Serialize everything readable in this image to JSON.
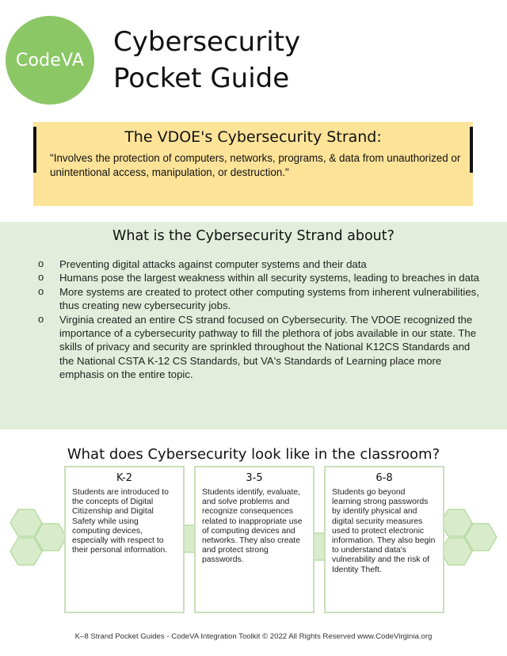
{
  "logo": {
    "text": "CodeVA"
  },
  "title": {
    "line1": "Cybersecurity",
    "line2": "Pocket Guide"
  },
  "strand": {
    "title": "The VDOE's Cybersecurity Strand:",
    "quote": "\"Involves the protection of computers, networks, programs, & data from unauthorized or unintentional access, manipulation, or destruction.\""
  },
  "about": {
    "heading": "What is the Cybersecurity Strand about?",
    "items": [
      "Preventing digital attacks against computer systems and their data",
      "Humans pose the largest weakness within all security systems, leading to breaches in data",
      "More systems are created to protect other computing systems from inherent vulnerabilities, thus creating new cybersecurity jobs.",
      "Virginia created an entire CS strand focused on Cybersecurity.  The VDOE recognized the importance of a cybersecurity pathway to fill the plethora of jobs available in our  state.  The skills of privacy and security are sprinkled throughout the National K12CS Standards and the National CSTA K-12 CS Standards, but VA's Standards of Learning place more emphasis on the entire topic."
    ]
  },
  "classroom": {
    "heading": "What does Cybersecurity look like in the classroom?",
    "cards": [
      {
        "grade": "K-2",
        "text": "Students are introduced to the concepts of Digital Citizenship and Digital Safety while using computing devices, especially with respect to their personal information."
      },
      {
        "grade": "3-5",
        "text": "Students identify, evaluate, and solve problems and recognize consequences related to inappropriate use of computing devices and networks.  They also create and protect strong passwords."
      },
      {
        "grade": "6-8",
        "text": "Students go beyond learning strong passwords by identify physical and digital security measures used to protect electronic information. They also begin to understand data's vulnerability and the risk of Identity Theft."
      }
    ]
  },
  "footer": {
    "text": "K–8 Strand Pocket Guides - CodeVA Integration Toolkit © 2022 All Rights Reserved www.CodeVirginia.org"
  },
  "colors": {
    "green": "#8cc766",
    "yellow": "#fde398",
    "light_green": "#e2eedb",
    "hex_fill": "#d8eccb",
    "hex_stroke": "#b9dba3"
  }
}
